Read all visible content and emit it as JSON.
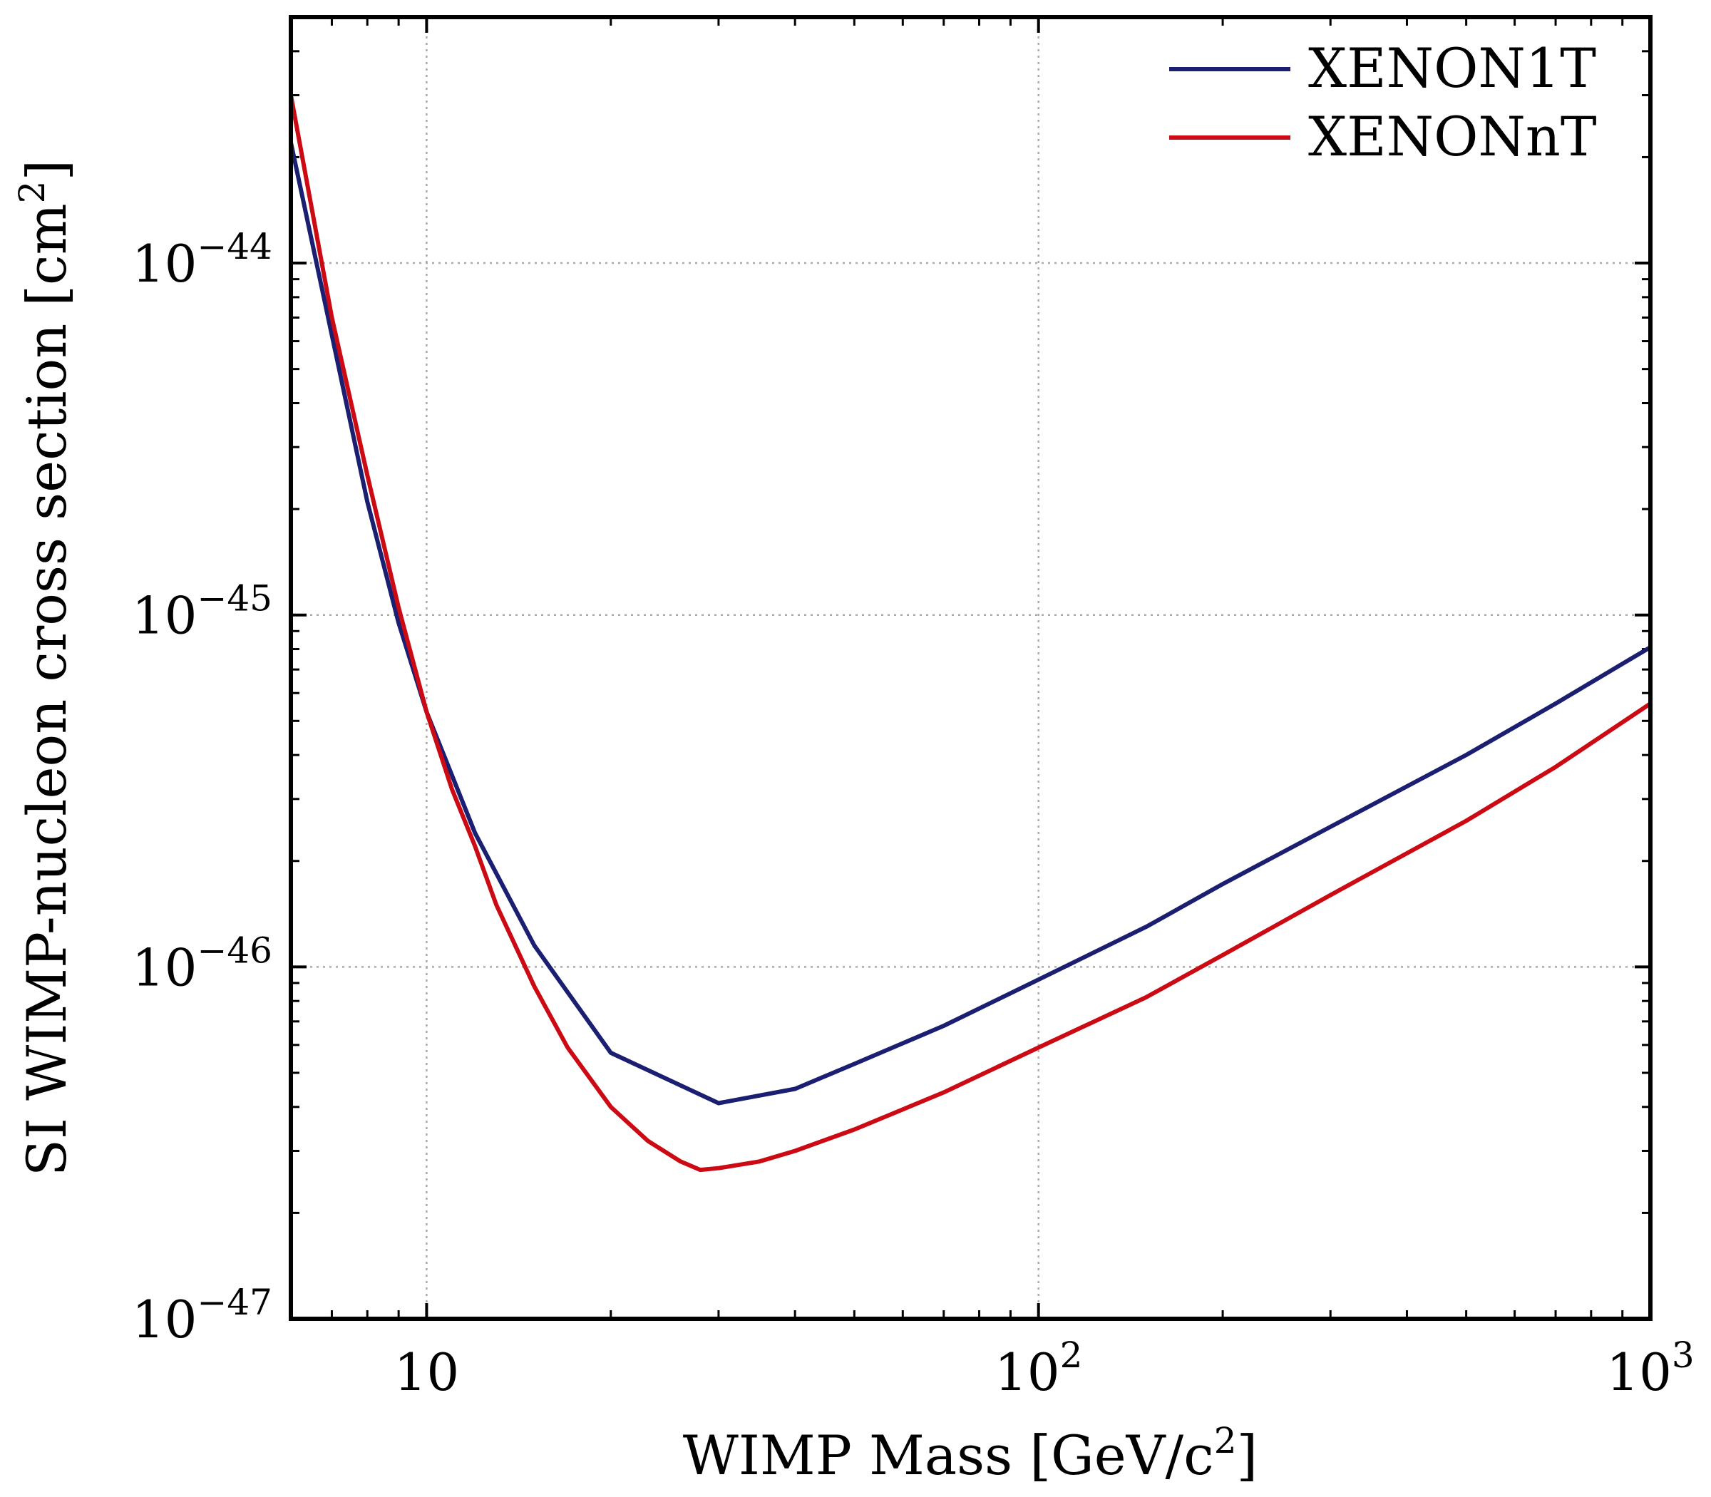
{
  "chart_data": {
    "type": "line",
    "xlabel": "WIMP Mass [GeV/c",
    "xlabel_sup": "2",
    "xlabel_suffix": "]",
    "ylabel": "SI WIMP-nucleon cross section [cm",
    "ylabel_sup": "2",
    "ylabel_suffix": "]",
    "xscale": "log",
    "yscale": "log",
    "xlim": [
      6,
      1000
    ],
    "ylim": [
      1e-47,
      5e-44
    ],
    "grid": true,
    "legend_position": "top-right",
    "x_ticks": [
      {
        "value": 10,
        "base": "10",
        "exp": ""
      },
      {
        "value": 100,
        "base": "10",
        "exp": "2"
      },
      {
        "value": 1000,
        "base": "10",
        "exp": "3"
      }
    ],
    "y_ticks": [
      {
        "value": 1e-47,
        "base": "10",
        "exp": "−47"
      },
      {
        "value": 1e-46,
        "base": "10",
        "exp": "−46"
      },
      {
        "value": 1e-45,
        "base": "10",
        "exp": "−45"
      },
      {
        "value": 1e-44,
        "base": "10",
        "exp": "−44"
      }
    ],
    "series": [
      {
        "name": "XENON1T",
        "color": "#1a1f71",
        "x": [
          6,
          8,
          9,
          10,
          12,
          15,
          20,
          30,
          40,
          50,
          70,
          100,
          150,
          200,
          300,
          500,
          700,
          1000
        ],
        "y": [
          2.2e-44,
          2.1e-45,
          9.5e-46,
          5.3e-46,
          2.4e-46,
          1.15e-46,
          5.7e-47,
          4.1e-47,
          4.5e-47,
          5.3e-47,
          6.8e-47,
          9.2e-47,
          1.3e-46,
          1.72e-46,
          2.5e-46,
          4e-46,
          5.6e-46,
          8.1e-46
        ]
      },
      {
        "name": "XENONnT",
        "color": "#cc0a14",
        "x": [
          6,
          7,
          8,
          9,
          10,
          11,
          12,
          13,
          15,
          17,
          20,
          23,
          26,
          28,
          30,
          35,
          40,
          50,
          70,
          100,
          150,
          200,
          300,
          500,
          700,
          1000
        ],
        "y": [
          3e-44,
          7e-45,
          2.5e-45,
          1.05e-45,
          5.3e-46,
          3.2e-46,
          2.2e-46,
          1.5e-46,
          8.8e-47,
          5.9e-47,
          4e-47,
          3.2e-47,
          2.8e-47,
          2.65e-47,
          2.68e-47,
          2.8e-47,
          3e-47,
          3.45e-47,
          4.4e-47,
          5.9e-47,
          8.2e-47,
          1.08e-46,
          1.6e-46,
          2.6e-46,
          3.7e-46,
          5.6e-46
        ]
      }
    ]
  }
}
